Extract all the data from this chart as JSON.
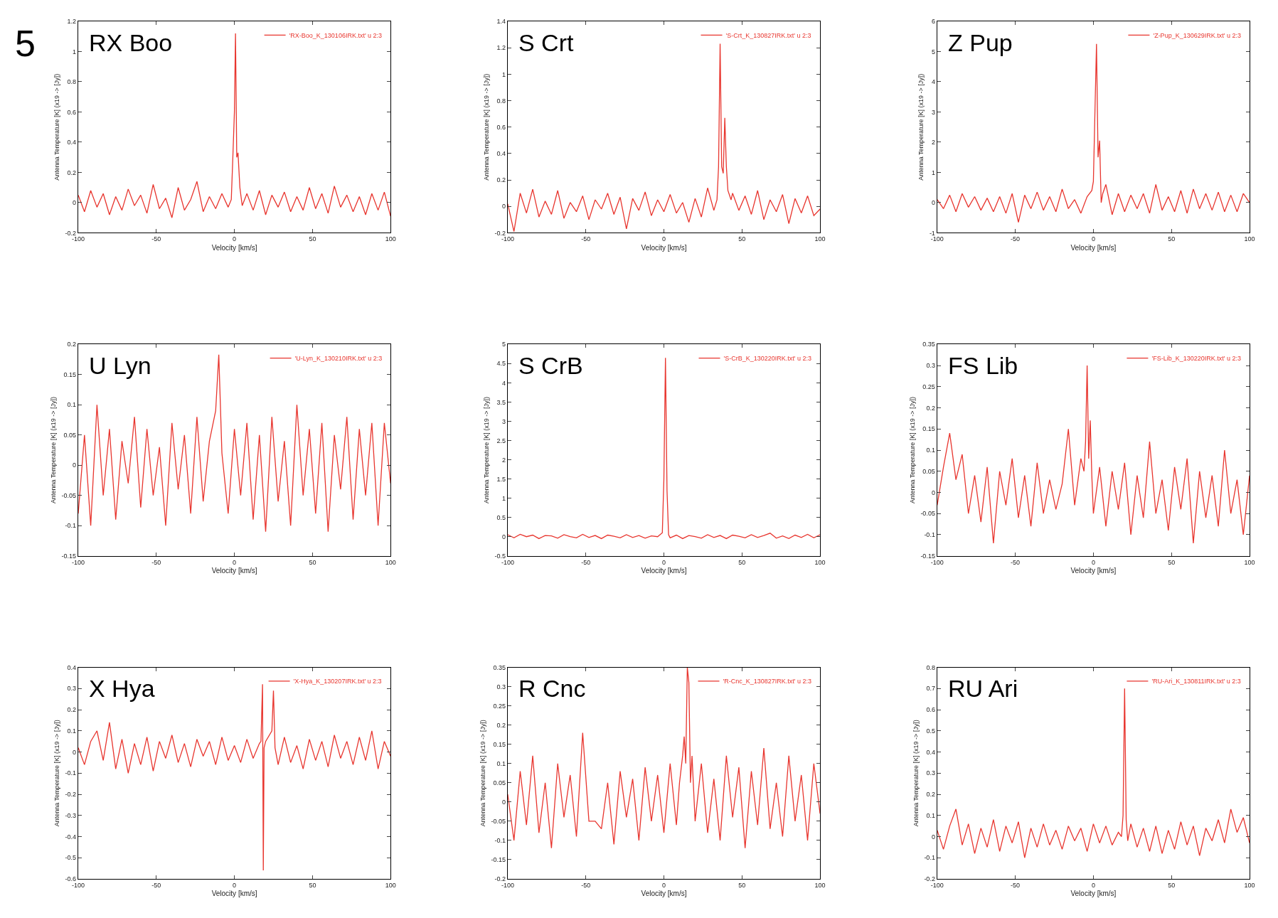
{
  "chart_data": [
    {
      "type": "line",
      "title": "RX Boo",
      "annotations": [
        "5"
      ],
      "xlabel": "Velocity [km/s]",
      "ylabel": "Antenna Temperature [K] (x19 -> [Jy])",
      "xlim": [
        -100,
        100
      ],
      "xticks": [
        -100,
        -50,
        0,
        50,
        100
      ],
      "ylim": [
        -0.2,
        1.2
      ],
      "yticks": [
        -0.2,
        0,
        0.2,
        0.4,
        0.6,
        0.8,
        1,
        1.2
      ],
      "legend": "top right",
      "series": [
        {
          "name": "'RX-Boo_K_130106IRK.txt' u 2:3",
          "color": "#e8352e",
          "x": [
            -100,
            -96,
            -92,
            -88,
            -84,
            -80,
            -76,
            -72,
            -68,
            -64,
            -60,
            -56,
            -52,
            -48,
            -44,
            -40,
            -36,
            -32,
            -28,
            -24,
            -20,
            -16,
            -12,
            -8,
            -4,
            -2,
            -1,
            0,
            0.7,
            1.5,
            2.3,
            3.5,
            5,
            8,
            12,
            16,
            20,
            24,
            28,
            32,
            36,
            40,
            44,
            48,
            52,
            56,
            60,
            64,
            68,
            72,
            76,
            80,
            84,
            88,
            92,
            96,
            100
          ],
          "values": [
            0.05,
            -0.06,
            0.08,
            -0.03,
            0.06,
            -0.08,
            0.04,
            -0.05,
            0.09,
            -0.02,
            0.05,
            -0.07,
            0.12,
            -0.04,
            0.03,
            -0.1,
            0.1,
            -0.05,
            0.02,
            0.14,
            -0.06,
            0.04,
            -0.04,
            0.06,
            -0.03,
            0.02,
            0.3,
            0.6,
            1.12,
            0.3,
            0.33,
            0.1,
            -0.02,
            0.06,
            -0.05,
            0.08,
            -0.08,
            0.05,
            -0.03,
            0.07,
            -0.06,
            0.04,
            -0.05,
            0.1,
            -0.04,
            0.06,
            -0.07,
            0.11,
            -0.03,
            0.05,
            -0.06,
            0.04,
            -0.08,
            0.06,
            -0.05,
            0.07,
            -0.09
          ]
        }
      ]
    },
    {
      "type": "line",
      "title": "S Crt",
      "xlabel": "Velocity [km/s]",
      "ylabel": "Antenna Temperature [K] (x19 -> [Jy])",
      "xlim": [
        -100,
        100
      ],
      "xticks": [
        -100,
        -50,
        0,
        50,
        100
      ],
      "ylim": [
        -0.2,
        1.4
      ],
      "yticks": [
        -0.2,
        0,
        0.2,
        0.4,
        0.6,
        0.8,
        1,
        1.2,
        1.4
      ],
      "legend": "top right",
      "series": [
        {
          "name": "'S-Crt_K_130827IRK.txt' u 2:3",
          "color": "#e8352e",
          "x": [
            -100,
            -96,
            -92,
            -88,
            -84,
            -80,
            -76,
            -72,
            -68,
            -64,
            -60,
            -56,
            -52,
            -48,
            -44,
            -40,
            -36,
            -32,
            -28,
            -24,
            -20,
            -16,
            -12,
            -8,
            -4,
            0,
            4,
            8,
            12,
            16,
            20,
            24,
            28,
            32,
            34,
            35,
            36,
            37,
            38,
            39,
            40,
            41,
            43,
            44,
            48,
            52,
            56,
            60,
            64,
            68,
            72,
            76,
            80,
            84,
            88,
            92,
            96,
            100
          ],
          "values": [
            0.02,
            -0.19,
            0.1,
            -0.05,
            0.13,
            -0.08,
            0.04,
            -0.06,
            0.12,
            -0.09,
            0.03,
            -0.04,
            0.08,
            -0.1,
            0.05,
            -0.02,
            0.1,
            -0.06,
            0.07,
            -0.17,
            0.06,
            -0.03,
            0.11,
            -0.07,
            0.05,
            -0.04,
            0.09,
            -0.05,
            0.03,
            -0.12,
            0.06,
            -0.08,
            0.14,
            -0.03,
            0.05,
            0.3,
            1.23,
            0.3,
            0.25,
            0.67,
            0.3,
            0.12,
            0.05,
            0.1,
            -0.03,
            0.08,
            -0.06,
            0.12,
            -0.1,
            0.05,
            -0.04,
            0.09,
            -0.13,
            0.06,
            -0.05,
            0.08,
            -0.07,
            -0.02
          ]
        }
      ]
    },
    {
      "type": "line",
      "title": "Z Pup",
      "xlabel": "Velocity [km/s]",
      "ylabel": "Antenna Temperature [K] (x19 -> [Jy])",
      "xlim": [
        -100,
        100
      ],
      "xticks": [
        -100,
        -50,
        0,
        50,
        100
      ],
      "ylim": [
        -1,
        6
      ],
      "yticks": [
        -1,
        0,
        1,
        2,
        3,
        4,
        5,
        6
      ],
      "legend": "top right",
      "series": [
        {
          "name": "'Z-Pup_K_130629IRK.txt' u 2:3",
          "color": "#e8352e",
          "x": [
            -100,
            -96,
            -92,
            -88,
            -84,
            -80,
            -76,
            -72,
            -68,
            -64,
            -60,
            -56,
            -52,
            -48,
            -44,
            -40,
            -36,
            -32,
            -28,
            -24,
            -20,
            -16,
            -12,
            -8,
            -4,
            -1,
            0,
            1,
            2,
            3,
            4,
            5,
            6,
            8,
            12,
            16,
            20,
            24,
            28,
            32,
            36,
            40,
            44,
            48,
            52,
            56,
            60,
            64,
            68,
            72,
            76,
            80,
            84,
            88,
            92,
            96,
            100
          ],
          "values": [
            0.1,
            -0.2,
            0.25,
            -0.3,
            0.3,
            -0.15,
            0.2,
            -0.25,
            0.15,
            -0.3,
            0.2,
            -0.35,
            0.3,
            -0.65,
            0.25,
            -0.2,
            0.35,
            -0.25,
            0.2,
            -0.3,
            0.45,
            -0.2,
            0.1,
            -0.35,
            0.2,
            0.4,
            0.7,
            3,
            5.25,
            1.5,
            2.05,
            0,
            0.3,
            0.6,
            -0.4,
            0.3,
            -0.3,
            0.25,
            -0.2,
            0.3,
            -0.35,
            0.6,
            -0.25,
            0.2,
            -0.3,
            0.4,
            -0.35,
            0.45,
            -0.2,
            0.3,
            -0.25,
            0.35,
            -0.3,
            0.25,
            -0.3,
            0.3,
            0
          ]
        }
      ]
    },
    {
      "type": "line",
      "title": "U Lyn",
      "xlabel": "Velocity [km/s]",
      "ylabel": "Antenna Temperature [K] (x19 -> [Jy])",
      "xlim": [
        -100,
        100
      ],
      "xticks": [
        -100,
        -50,
        0,
        50,
        100
      ],
      "ylim": [
        -0.15,
        0.2
      ],
      "yticks": [
        -0.15,
        -0.1,
        -0.05,
        0,
        0.05,
        0.1,
        0.15,
        0.2
      ],
      "legend": "top right",
      "series": [
        {
          "name": "'U-Lyn_K_130210IRK.txt' u 2:3",
          "color": "#e8352e",
          "x": [
            -100,
            -96,
            -92,
            -88,
            -84,
            -80,
            -76,
            -72,
            -68,
            -64,
            -60,
            -56,
            -52,
            -48,
            -44,
            -40,
            -36,
            -32,
            -28,
            -24,
            -20,
            -16,
            -12,
            -10,
            -8,
            -4,
            0,
            4,
            8,
            12,
            16,
            20,
            24,
            28,
            32,
            36,
            40,
            44,
            48,
            52,
            56,
            60,
            64,
            68,
            72,
            76,
            80,
            84,
            88,
            92,
            96,
            100
          ],
          "values": [
            -0.08,
            0.05,
            -0.1,
            0.1,
            -0.05,
            0.06,
            -0.09,
            0.04,
            -0.03,
            0.08,
            -0.07,
            0.06,
            -0.05,
            0.03,
            -0.1,
            0.07,
            -0.04,
            0.05,
            -0.08,
            0.08,
            -0.06,
            0.04,
            0.09,
            0.183,
            0.02,
            -0.08,
            0.06,
            -0.05,
            0.07,
            -0.09,
            0.05,
            -0.11,
            0.08,
            -0.06,
            0.04,
            -0.1,
            0.1,
            -0.05,
            0.06,
            -0.08,
            0.07,
            -0.11,
            0.05,
            -0.04,
            0.08,
            -0.09,
            0.06,
            -0.05,
            0.07,
            -0.1,
            0.07,
            -0.03
          ]
        }
      ]
    },
    {
      "type": "line",
      "title": "S CrB",
      "xlabel": "Velocity [km/s]",
      "ylabel": "Antenna Temperature [K] (x19 -> [Jy])",
      "xlim": [
        -100,
        100
      ],
      "xticks": [
        -100,
        -50,
        0,
        50,
        100
      ],
      "ylim": [
        -0.5,
        5
      ],
      "yticks": [
        -0.5,
        0,
        0.5,
        1,
        1.5,
        2,
        2.5,
        3,
        3.5,
        4,
        4.5,
        5
      ],
      "legend": "top right",
      "series": [
        {
          "name": "'S-CrB_K_130220IRK.txt' u 2:3",
          "color": "#e8352e",
          "x": [
            -100,
            -96,
            -92,
            -88,
            -84,
            -80,
            -76,
            -72,
            -68,
            -64,
            -60,
            -56,
            -52,
            -48,
            -44,
            -40,
            -36,
            -32,
            -28,
            -24,
            -20,
            -16,
            -12,
            -8,
            -4,
            -1,
            0,
            1,
            2,
            3,
            4,
            8,
            12,
            16,
            20,
            24,
            28,
            32,
            36,
            40,
            44,
            48,
            52,
            56,
            60,
            64,
            68,
            72,
            76,
            80,
            84,
            88,
            92,
            96,
            100
          ],
          "values": [
            0.05,
            -0.03,
            0.06,
            0,
            0.04,
            -0.05,
            0.03,
            0.02,
            -0.04,
            0.05,
            0,
            -0.03,
            0.06,
            -0.02,
            0.03,
            -0.05,
            0.04,
            0.01,
            -0.03,
            0.05,
            -0.02,
            0.03,
            -0.04,
            0.02,
            0,
            0.1,
            1.5,
            4.65,
            1.2,
            0.05,
            -0.03,
            0.04,
            -0.05,
            0.03,
            0,
            -0.04,
            0.05,
            -0.02,
            0.03,
            -0.05,
            0.04,
            0.01,
            -0.03,
            0.05,
            -0.02,
            0.03,
            0.09,
            -0.04,
            0.02,
            -0.05,
            0.04,
            -0.02,
            0.06,
            -0.03,
            0.05
          ]
        }
      ]
    },
    {
      "type": "line",
      "title": "FS Lib",
      "xlabel": "Velocity [km/s]",
      "ylabel": "Antenna Temperature [K] (x19 -> [Jy])",
      "xlim": [
        -100,
        100
      ],
      "xticks": [
        -100,
        -50,
        0,
        50,
        100
      ],
      "ylim": [
        -0.15,
        0.35
      ],
      "yticks": [
        -0.15,
        -0.1,
        -0.05,
        0,
        0.05,
        0.1,
        0.15,
        0.2,
        0.25,
        0.3,
        0.35
      ],
      "legend": "top right",
      "series": [
        {
          "name": "'FS-Lib_K_130220IRK.txt' u 2:3",
          "color": "#e8352e",
          "x": [
            -100,
            -96,
            -92,
            -88,
            -84,
            -80,
            -76,
            -72,
            -68,
            -64,
            -60,
            -56,
            -52,
            -48,
            -44,
            -40,
            -36,
            -32,
            -28,
            -24,
            -20,
            -16,
            -12,
            -8,
            -6,
            -5,
            -4,
            -3,
            -2,
            -1,
            0,
            4,
            8,
            12,
            16,
            20,
            24,
            28,
            32,
            36,
            40,
            44,
            48,
            52,
            56,
            60,
            64,
            68,
            72,
            76,
            80,
            84,
            88,
            92,
            96,
            100
          ],
          "values": [
            -0.03,
            0.06,
            0.14,
            0.03,
            0.09,
            -0.05,
            0.04,
            -0.07,
            0.06,
            -0.12,
            0.05,
            -0.03,
            0.08,
            -0.06,
            0.04,
            -0.08,
            0.07,
            -0.05,
            0.03,
            -0.04,
            0.02,
            0.15,
            -0.03,
            0.08,
            0.05,
            0.12,
            0.3,
            0.08,
            0.17,
            0.04,
            -0.05,
            0.06,
            -0.08,
            0.05,
            -0.04,
            0.07,
            -0.1,
            0.04,
            -0.06,
            0.12,
            -0.05,
            0.03,
            -0.09,
            0.06,
            -0.04,
            0.08,
            -0.12,
            0.05,
            -0.06,
            0.04,
            -0.08,
            0.1,
            -0.05,
            0.03,
            -0.1,
            0.04
          ]
        }
      ]
    },
    {
      "type": "line",
      "title": "X Hya",
      "xlabel": "Velocity [km/s]",
      "ylabel": "Antenna Temperature [K] (x19 -> [Jy])",
      "xlim": [
        -100,
        100
      ],
      "xticks": [
        -100,
        -50,
        0,
        50,
        100
      ],
      "ylim": [
        -0.6,
        0.4
      ],
      "yticks": [
        -0.6,
        -0.5,
        -0.4,
        -0.3,
        -0.2,
        -0.1,
        0,
        0.1,
        0.2,
        0.3,
        0.4
      ],
      "legend": "top right",
      "series": [
        {
          "name": "'X-Hya_K_130207IRK.txt' u 2:3",
          "color": "#e8352e",
          "x": [
            -100,
            -96,
            -92,
            -88,
            -84,
            -80,
            -76,
            -72,
            -68,
            -64,
            -60,
            -56,
            -52,
            -48,
            -44,
            -40,
            -36,
            -32,
            -28,
            -24,
            -20,
            -16,
            -12,
            -8,
            -4,
            0,
            4,
            8,
            12,
            16,
            17,
            18,
            18.5,
            19,
            20,
            24,
            25,
            26,
            28,
            32,
            36,
            40,
            44,
            48,
            52,
            56,
            60,
            64,
            68,
            72,
            76,
            80,
            84,
            88,
            92,
            96,
            100
          ],
          "values": [
            0.02,
            -0.06,
            0.05,
            0.1,
            -0.04,
            0.14,
            -0.08,
            0.06,
            -0.1,
            0.04,
            -0.06,
            0.07,
            -0.09,
            0.05,
            -0.03,
            0.08,
            -0.05,
            0.04,
            -0.07,
            0.06,
            -0.02,
            0.05,
            -0.06,
            0.07,
            -0.04,
            0.03,
            -0.05,
            0.06,
            -0.03,
            0.04,
            0.05,
            0.32,
            -0.56,
            0.02,
            0.05,
            0.1,
            0.29,
            0.02,
            -0.06,
            0.07,
            -0.05,
            0.03,
            -0.08,
            0.06,
            -0.04,
            0.05,
            -0.07,
            0.08,
            -0.03,
            0.05,
            -0.06,
            0.07,
            -0.04,
            0.1,
            -0.08,
            0.05,
            -0.02
          ]
        }
      ]
    },
    {
      "type": "line",
      "title": "R Cnc",
      "xlabel": "Velocity [km/s]",
      "ylabel": "Antenna Temperature [K] (x19 -> [Jy])",
      "xlim": [
        -100,
        100
      ],
      "xticks": [
        -100,
        -50,
        0,
        50,
        100
      ],
      "ylim": [
        -0.2,
        0.35
      ],
      "yticks": [
        -0.2,
        -0.15,
        -0.1,
        -0.05,
        0,
        0.05,
        0.1,
        0.15,
        0.2,
        0.25,
        0.3,
        0.35
      ],
      "legend": "top right",
      "series": [
        {
          "name": "'R-Cnc_K_130827IRK.txt' u 2:3",
          "color": "#e8352e",
          "x": [
            -100,
            -96,
            -92,
            -88,
            -84,
            -80,
            -76,
            -72,
            -68,
            -64,
            -60,
            -56,
            -52,
            -48,
            -44,
            -40,
            -36,
            -32,
            -28,
            -24,
            -20,
            -16,
            -12,
            -8,
            -4,
            0,
            4,
            8,
            10,
            12,
            13,
            14,
            15,
            16,
            17,
            18,
            20,
            24,
            28,
            32,
            36,
            40,
            44,
            48,
            52,
            56,
            60,
            64,
            68,
            72,
            76,
            80,
            84,
            88,
            92,
            96,
            100
          ],
          "values": [
            0.02,
            -0.1,
            0.08,
            -0.06,
            0.12,
            -0.08,
            0.05,
            -0.12,
            0.1,
            -0.04,
            0.07,
            -0.09,
            0.18,
            -0.05,
            -0.05,
            -0.07,
            0.05,
            -0.11,
            0.08,
            -0.04,
            0.06,
            -0.1,
            0.09,
            -0.05,
            0.07,
            -0.08,
            0.1,
            -0.06,
            0.05,
            0.12,
            0.17,
            0.1,
            0.35,
            0.31,
            0.05,
            0.12,
            -0.05,
            0.1,
            -0.08,
            0.06,
            -0.1,
            0.12,
            -0.04,
            0.09,
            -0.12,
            0.08,
            -0.06,
            0.14,
            -0.07,
            0.05,
            -0.09,
            0.12,
            -0.05,
            0.07,
            -0.1,
            0.1,
            -0.03
          ]
        }
      ]
    },
    {
      "type": "line",
      "title": "RU Ari",
      "xlabel": "Velocity [km/s]",
      "ylabel": "Antenna Temperature [K] (x19 -> [Jy])",
      "xlim": [
        -100,
        100
      ],
      "xticks": [
        -100,
        -50,
        0,
        50,
        100
      ],
      "ylim": [
        -0.2,
        0.8
      ],
      "yticks": [
        -0.2,
        -0.1,
        0,
        0.1,
        0.2,
        0.3,
        0.4,
        0.5,
        0.6,
        0.7,
        0.8
      ],
      "legend": "top right",
      "series": [
        {
          "name": "'RU-Ari_K_130811IRK.txt' u 2:3",
          "color": "#e8352e",
          "x": [
            -100,
            -96,
            -92,
            -88,
            -84,
            -80,
            -76,
            -72,
            -68,
            -64,
            -60,
            -56,
            -52,
            -48,
            -44,
            -40,
            -36,
            -32,
            -28,
            -24,
            -20,
            -16,
            -12,
            -8,
            -4,
            0,
            4,
            8,
            12,
            16,
            18,
            19,
            20,
            21,
            22,
            24,
            28,
            32,
            36,
            40,
            44,
            48,
            52,
            56,
            60,
            64,
            68,
            72,
            76,
            80,
            84,
            88,
            92,
            96,
            100
          ],
          "values": [
            0.03,
            -0.06,
            0.05,
            0.13,
            -0.04,
            0.06,
            -0.08,
            0.04,
            -0.05,
            0.08,
            -0.07,
            0.05,
            -0.03,
            0.07,
            -0.1,
            0.04,
            -0.05,
            0.06,
            -0.04,
            0.03,
            -0.06,
            0.05,
            -0.02,
            0.04,
            -0.07,
            0.06,
            -0.03,
            0.05,
            -0.04,
            0.02,
            0,
            0.1,
            0.7,
            0.08,
            -0.02,
            0.06,
            -0.05,
            0.04,
            -0.07,
            0.05,
            -0.08,
            0.03,
            -0.06,
            0.07,
            -0.04,
            0.05,
            -0.09,
            0.04,
            -0.02,
            0.08,
            -0.03,
            0.13,
            0.02,
            0.09,
            -0.03
          ]
        }
      ]
    }
  ]
}
